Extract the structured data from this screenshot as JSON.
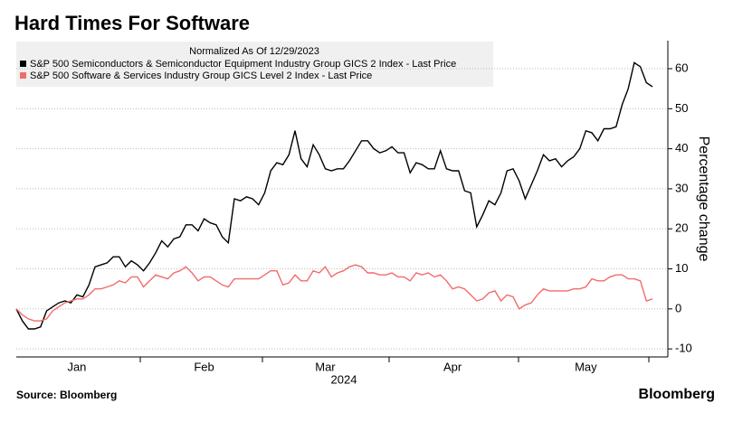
{
  "chart_data": {
    "type": "line",
    "title": "Hard Times For Software",
    "legend_title": "Normalized As Of 12/29/2023",
    "y_label": "Percentage change",
    "x_label": "2024",
    "source": "Source: Bloomberg",
    "brand": "Bloomberg",
    "categories": [
      null,
      null,
      null,
      null,
      null,
      null,
      null,
      null,
      null,
      null,
      "Jan",
      null,
      null,
      null,
      null,
      null,
      null,
      null,
      null,
      null,
      null,
      null,
      null,
      null,
      null,
      null,
      null,
      null,
      null,
      null,
      null,
      "Feb",
      null,
      null,
      null,
      null,
      null,
      null,
      null,
      null,
      null,
      null,
      null,
      null,
      null,
      null,
      null,
      null,
      null,
      null,
      null,
      "Mar",
      null,
      null,
      null,
      null,
      null,
      null,
      null,
      null,
      null,
      null,
      null,
      null,
      null,
      null,
      null,
      null,
      null,
      null,
      null,
      null,
      "Apr",
      null,
      null,
      null,
      null,
      null,
      null,
      null,
      null,
      null,
      null,
      null,
      null,
      null,
      null,
      null,
      null,
      null,
      null,
      null,
      null,
      null,
      "May",
      null,
      null,
      null,
      null,
      null,
      null,
      null,
      null,
      null,
      null,
      null
    ],
    "series": [
      {
        "name": "S&P 500 Semiconductors & Semiconductor Equipment Industry Group GICS 2 Index - Last Price",
        "color": "#000000",
        "values": [
          0,
          -3,
          -5,
          -5,
          -4.5,
          -0.5,
          0.5,
          1.5,
          2,
          1.5,
          3.5,
          3,
          6,
          10.5,
          11,
          11.5,
          13,
          13,
          10.5,
          12,
          11,
          9.5,
          11.5,
          14,
          17,
          15.5,
          17.5,
          18,
          21,
          21,
          19.5,
          22.5,
          21.5,
          21,
          18,
          16.5,
          27.5,
          27,
          28,
          27.5,
          26,
          29,
          34.5,
          36.5,
          36,
          38.5,
          44.5,
          37.5,
          35.5,
          41,
          38.5,
          35,
          34.5,
          35,
          35,
          37,
          39.5,
          42,
          42,
          40,
          39,
          39.5,
          40.5,
          39,
          39,
          34,
          36.5,
          36,
          35,
          35,
          39.5,
          35,
          34.5,
          34.5,
          29.5,
          29,
          20.5,
          23.5,
          27,
          26,
          29,
          34.5,
          35,
          32,
          27.5,
          31,
          34.5,
          38.5,
          37,
          37.5,
          35.5,
          37,
          38,
          40,
          44.5,
          44,
          42,
          45,
          45,
          45.5,
          51,
          55,
          61.5,
          60.5,
          56.5,
          55.5
        ]
      },
      {
        "name": "S&P 500 Software & Services Industry Group GICS Level 2 Index - Last Price",
        "color": "#f26b6b",
        "values": [
          0,
          -1.5,
          -2.5,
          -3,
          -3,
          -2.5,
          -0.5,
          0.5,
          1.5,
          2,
          2.5,
          2.5,
          3.5,
          5,
          5,
          5.5,
          6,
          7,
          6.5,
          8,
          8,
          5.5,
          7,
          8.5,
          8,
          7.5,
          9,
          9.5,
          10.5,
          9,
          7,
          8,
          8,
          7,
          6,
          5.5,
          7.5,
          7.5,
          7.5,
          7.5,
          7.5,
          8.5,
          9.5,
          9.5,
          6,
          6.5,
          8.5,
          7,
          7,
          9.5,
          9,
          10.5,
          8,
          9,
          9.5,
          10.5,
          11,
          10.5,
          9,
          9,
          8.5,
          8.5,
          9,
          8,
          8,
          7,
          9,
          8.5,
          9,
          8,
          8.5,
          7,
          5,
          5.5,
          5,
          3.5,
          2,
          2.5,
          4,
          4.5,
          2,
          3.5,
          3,
          0,
          1,
          1.5,
          3.5,
          5,
          4.5,
          4.5,
          4.5,
          4.5,
          5,
          5,
          5.5,
          7.5,
          7,
          7,
          8,
          8.5,
          8.5,
          7.5,
          7.5,
          7,
          2,
          2.5
        ]
      }
    ],
    "ylim": [
      -12,
      67
    ],
    "yticks": [
      -10,
      0,
      10,
      20,
      30,
      40,
      50,
      60
    ],
    "grid": true,
    "y_axis_side": "right"
  }
}
